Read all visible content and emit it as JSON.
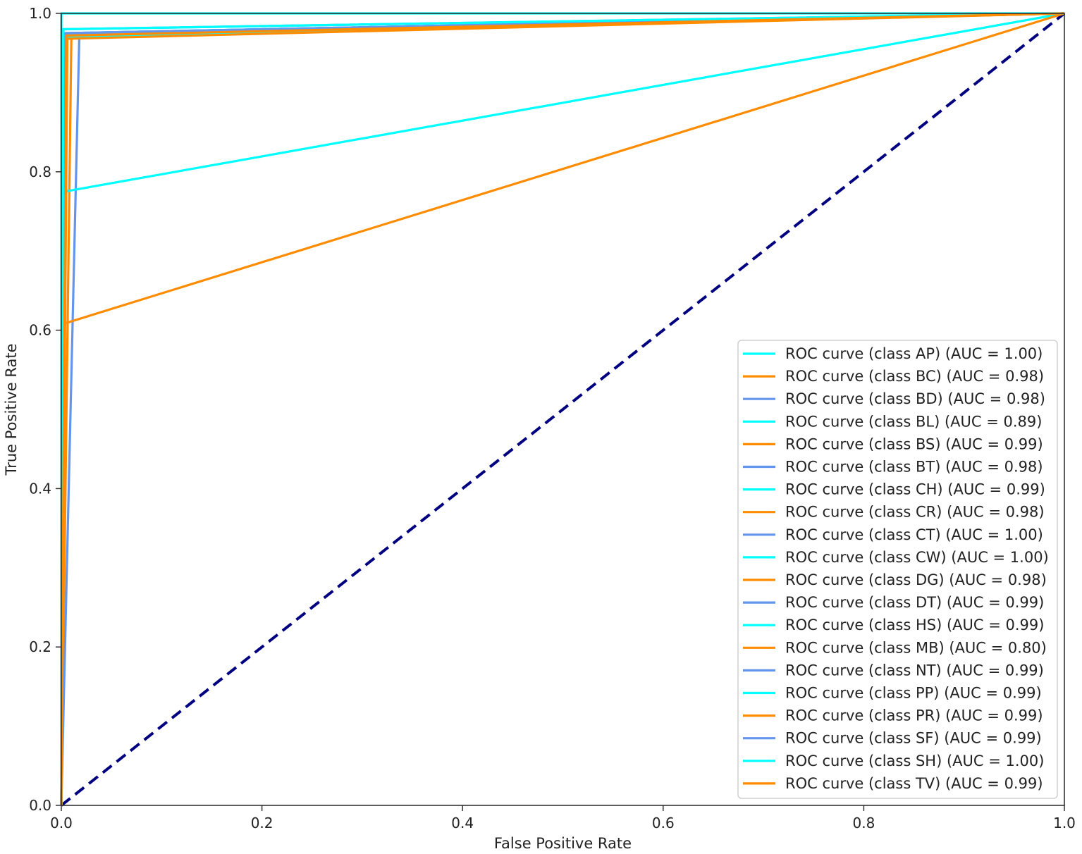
{
  "chart_data": {
    "type": "line",
    "title": "",
    "xlabel": "False Positive Rate",
    "ylabel": "True Positive Rate",
    "xlim": [
      0.0,
      1.0
    ],
    "ylim": [
      0.0,
      1.0
    ],
    "xticks": [
      "0.0",
      "0.2",
      "0.4",
      "0.6",
      "0.8",
      "1.0"
    ],
    "yticks": [
      "0.0",
      "0.2",
      "0.4",
      "0.6",
      "0.8",
      "1.0"
    ],
    "grid": false,
    "legend_position": "lower right",
    "series": [
      {
        "name": "ROC curve (class AP) (AUC = 1.00)",
        "color": "#00ffff",
        "x": [
          0.0,
          0.0,
          1.0
        ],
        "y": [
          0.0,
          1.0,
          1.0
        ]
      },
      {
        "name": "ROC curve (class BC) (AUC = 0.98)",
        "color": "#ff8c00",
        "x": [
          0.0,
          0.01,
          1.0
        ],
        "y": [
          0.0,
          0.97,
          1.0
        ]
      },
      {
        "name": "ROC curve (class BD) (AUC = 0.98)",
        "color": "#6495ed",
        "x": [
          0.0,
          0.018,
          1.0
        ],
        "y": [
          0.0,
          0.975,
          1.0
        ]
      },
      {
        "name": "ROC curve (class BL) (AUC = 0.89)",
        "color": "#00ffff",
        "x": [
          0.0,
          0.003,
          1.0
        ],
        "y": [
          0.0,
          0.775,
          1.0
        ]
      },
      {
        "name": "ROC curve (class BS) (AUC = 0.99)",
        "color": "#ff8c00",
        "x": [
          0.0,
          0.004,
          1.0
        ],
        "y": [
          0.0,
          0.97,
          1.0
        ]
      },
      {
        "name": "ROC curve (class BT) (AUC = 0.98)",
        "color": "#6495ed",
        "x": [
          0.0,
          0.005,
          1.0
        ],
        "y": [
          0.0,
          0.975,
          1.0
        ]
      },
      {
        "name": "ROC curve (class CH) (AUC = 0.99)",
        "color": "#00ffff",
        "x": [
          0.0,
          0.003,
          1.0
        ],
        "y": [
          0.0,
          0.975,
          1.0
        ]
      },
      {
        "name": "ROC curve (class CR) (AUC = 0.98)",
        "color": "#ff8c00",
        "x": [
          0.0,
          0.003,
          1.0
        ],
        "y": [
          0.0,
          0.97,
          1.0
        ]
      },
      {
        "name": "ROC curve (class CT) (AUC = 1.00)",
        "color": "#6495ed",
        "x": [
          0.0,
          0.002,
          1.0
        ],
        "y": [
          0.0,
          0.98,
          1.0
        ]
      },
      {
        "name": "ROC curve (class CW) (AUC = 1.00)",
        "color": "#00ffff",
        "x": [
          0.0,
          0.002,
          1.0
        ],
        "y": [
          0.0,
          0.975,
          1.0
        ]
      },
      {
        "name": "ROC curve (class DG) (AUC = 0.98)",
        "color": "#ff8c00",
        "x": [
          0.0,
          0.003,
          1.0
        ],
        "y": [
          0.0,
          0.97,
          1.0
        ]
      },
      {
        "name": "ROC curve (class DT) (AUC = 0.99)",
        "color": "#6495ed",
        "x": [
          0.0,
          0.003,
          1.0
        ],
        "y": [
          0.0,
          0.972,
          1.0
        ]
      },
      {
        "name": "ROC curve (class HS) (AUC = 0.99)",
        "color": "#00ffff",
        "x": [
          0.0,
          0.003,
          1.0
        ],
        "y": [
          0.0,
          0.972,
          1.0
        ]
      },
      {
        "name": "ROC curve (class MB) (AUC = 0.80)",
        "color": "#ff8c00",
        "x": [
          0.0,
          0.002,
          1.0
        ],
        "y": [
          0.0,
          0.608,
          1.0
        ]
      },
      {
        "name": "ROC curve (class NT) (AUC = 0.99)",
        "color": "#6495ed",
        "x": [
          0.0,
          0.003,
          1.0
        ],
        "y": [
          0.0,
          0.975,
          1.0
        ]
      },
      {
        "name": "ROC curve (class PP) (AUC = 0.99)",
        "color": "#00ffff",
        "x": [
          0.0,
          0.003,
          1.0
        ],
        "y": [
          0.0,
          0.97,
          1.0
        ]
      },
      {
        "name": "ROC curve (class PR) (AUC = 0.99)",
        "color": "#ff8c00",
        "x": [
          0.0,
          0.006,
          1.0
        ],
        "y": [
          0.0,
          0.968,
          1.0
        ]
      },
      {
        "name": "ROC curve (class SF) (AUC = 0.99)",
        "color": "#6495ed",
        "x": [
          0.0,
          0.004,
          1.0
        ],
        "y": [
          0.0,
          0.975,
          1.0
        ]
      },
      {
        "name": "ROC curve (class SH) (AUC = 1.00)",
        "color": "#00ffff",
        "x": [
          0.0,
          0.002,
          1.0
        ],
        "y": [
          0.0,
          0.98,
          1.0
        ]
      },
      {
        "name": "ROC curve (class TV) (AUC = 0.99)",
        "color": "#ff8c00",
        "x": [
          0.0,
          0.005,
          1.0
        ],
        "y": [
          0.0,
          0.972,
          1.0
        ]
      }
    ],
    "reference_line": {
      "color": "#000080",
      "style": "dashed",
      "x": [
        0.0,
        1.0
      ],
      "y": [
        0.0,
        1.0
      ]
    }
  }
}
